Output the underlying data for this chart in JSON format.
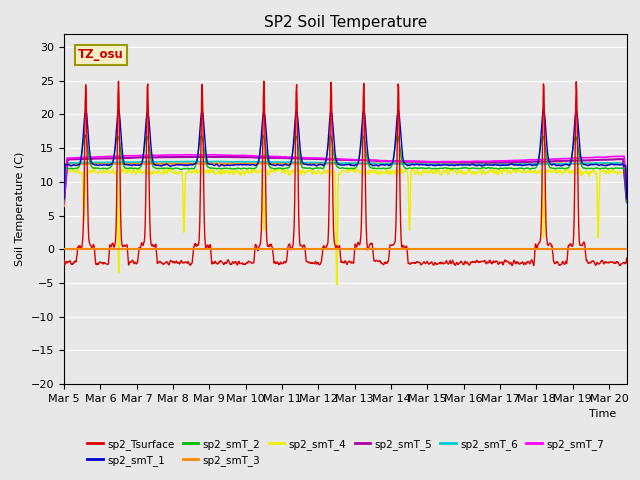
{
  "title": "SP2 Soil Temperature",
  "ylabel": "Soil Temperature (C)",
  "xlabel": "Time",
  "tz_label": "TZ_osu",
  "ylim": [
    -20,
    32
  ],
  "yticks": [
    -20,
    -15,
    -10,
    -5,
    0,
    5,
    10,
    15,
    20,
    25,
    30
  ],
  "xtick_labels": [
    "Mar 5",
    "Mar 6",
    "Mar 7",
    "Mar 8",
    "Mar 9",
    "Mar 10",
    "Mar 11",
    "Mar 12",
    "Mar 13",
    "Mar 14",
    "Mar 15",
    "Mar 16",
    "Mar 17",
    "Mar 18",
    "Mar 19",
    "Mar 20"
  ],
  "bg_color": "#e8e8e8",
  "legend": [
    {
      "label": "sp2_Tsurface",
      "color": "#dd0000"
    },
    {
      "label": "sp2_smT_1",
      "color": "#0000cc"
    },
    {
      "label": "sp2_smT_2",
      "color": "#00bb00"
    },
    {
      "label": "sp2_smT_3",
      "color": "#ff8800"
    },
    {
      "label": "sp2_smT_4",
      "color": "#eeee00"
    },
    {
      "label": "sp2_smT_5",
      "color": "#aa00aa"
    },
    {
      "label": "sp2_smT_6",
      "color": "#00cccc"
    },
    {
      "label": "sp2_smT_7",
      "color": "#ff00ff"
    }
  ],
  "hline_color": "#ff8800",
  "hline_y": 0,
  "peak_days": [
    0.6,
    1.5,
    2.3,
    3.8,
    5.5,
    6.4,
    7.35,
    8.25,
    9.2,
    13.2,
    14.1
  ],
  "spike_days": [
    0.55,
    1.5,
    3.3,
    5.5,
    7.5,
    9.5,
    13.2,
    14.7
  ],
  "spike_depths": [
    -8.5,
    -17.5,
    -10.5,
    -10.5,
    -20,
    -10,
    -11.5,
    -11.5
  ]
}
